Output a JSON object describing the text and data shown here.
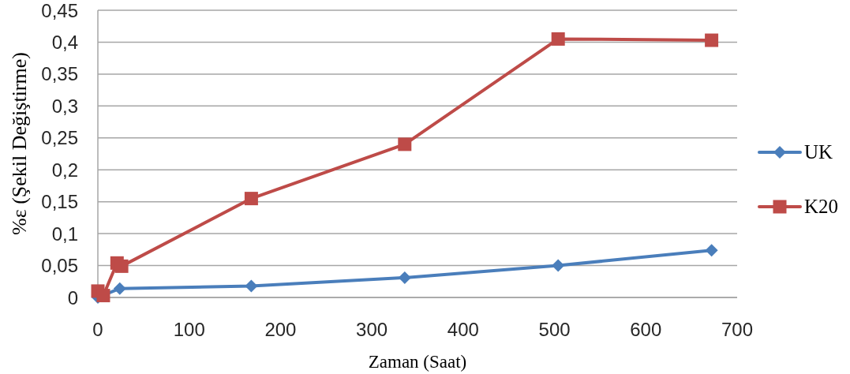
{
  "chart_data": {
    "type": "line",
    "xlabel": "Zaman (Saat)",
    "ylabel": "%ε (Şekil Değiştirme)",
    "xlim": [
      0,
      700
    ],
    "xticks": [
      0,
      100,
      200,
      300,
      400,
      500,
      600,
      700
    ],
    "ylim": [
      0,
      0.45
    ],
    "yticks": [
      0,
      {
        "value": 0.05,
        "label": "0,05"
      },
      {
        "value": 0.1,
        "label": "0,1"
      },
      {
        "value": 0.15,
        "label": "0,15"
      },
      {
        "value": 0.2,
        "label": "0,2"
      },
      {
        "value": 0.25,
        "label": "0,25"
      },
      {
        "value": 0.3,
        "label": "0,3"
      },
      {
        "value": 0.35,
        "label": "0,35"
      },
      {
        "value": 0.4,
        "label": "0,4"
      },
      {
        "value": 0.45,
        "label": "0,45"
      }
    ],
    "grid": "y",
    "legend": "right",
    "line_style": "solid",
    "series": [
      {
        "name": "UK",
        "color": "#4a7ebb",
        "marker": "diamond",
        "x": [
          0,
          24,
          168,
          336,
          504,
          672
        ],
        "values": [
          0,
          0.014,
          0.018,
          0.031,
          0.05,
          0.074
        ]
      },
      {
        "name": "K20",
        "color": "#be4b48",
        "marker": "square",
        "x": [
          0,
          6,
          21,
          26,
          168,
          336,
          504,
          672
        ],
        "values": [
          0.01,
          0.003,
          0.054,
          0.049,
          0.155,
          0.24,
          0.405,
          0.403
        ]
      }
    ]
  }
}
